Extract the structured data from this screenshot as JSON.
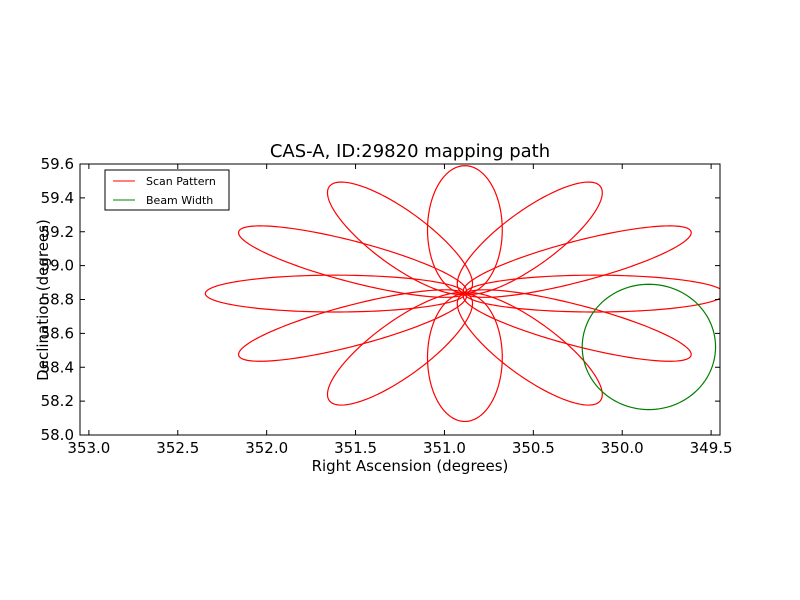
{
  "chart_data": {
    "type": "line",
    "title": "CAS-A, ID:29820 mapping path",
    "xlabel": "Right Ascension (degrees)",
    "ylabel": "Declination (degrees)",
    "xlim": [
      353.05,
      349.45
    ],
    "ylim": [
      58.0,
      59.6
    ],
    "x_inverted": true,
    "xticks": [
      "353.0",
      "352.5",
      "352.0",
      "351.5",
      "351.0",
      "350.5",
      "350.0",
      "349.5"
    ],
    "xtick_values": [
      353.0,
      352.5,
      352.0,
      351.5,
      351.0,
      350.5,
      350.0,
      349.5
    ],
    "yticks": [
      "58.0",
      "58.2",
      "58.4",
      "58.6",
      "58.8",
      "59.0",
      "59.2",
      "59.4",
      "59.6"
    ],
    "ytick_values": [
      58.0,
      58.2,
      58.4,
      58.6,
      58.8,
      59.0,
      59.2,
      59.4,
      59.6
    ],
    "grid": false,
    "legend_position": "top-left",
    "series": [
      {
        "name": "Scan Pattern",
        "color": "#ff0000",
        "shape": "rosette",
        "center": [
          350.885,
          58.835
        ],
        "petal_angles_deg": [
          0,
          30,
          60,
          90,
          120,
          150,
          180,
          210,
          240,
          270,
          300,
          330
        ],
        "petal_length_ra": 1.46,
        "petal_length_dec": 0.755,
        "petal_half_width": 0.072
      },
      {
        "name": "Beam Width",
        "color": "#008000",
        "shape": "circle",
        "center": [
          349.85,
          58.52
        ],
        "radius_ra": 0.375,
        "radius_dec": 0.37
      }
    ]
  }
}
